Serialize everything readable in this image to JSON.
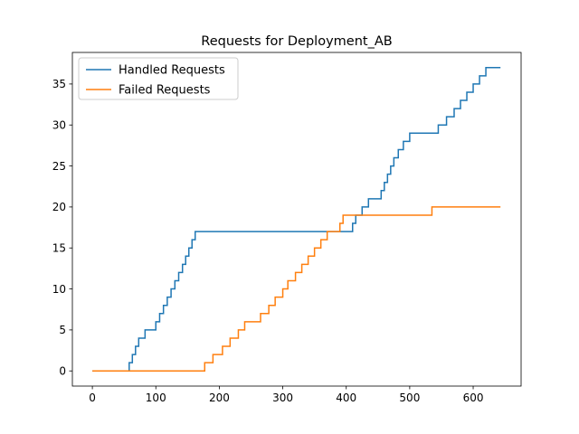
{
  "chart_data": {
    "type": "line",
    "title": "Requests for Deployment_AB",
    "xlabel": "",
    "ylabel": "",
    "xlim": [
      -31.5,
      675.5
    ],
    "ylim": [
      -1.85,
      38.85
    ],
    "xticks": [
      0,
      100,
      200,
      300,
      400,
      500,
      600
    ],
    "yticks": [
      0,
      5,
      10,
      15,
      20,
      25,
      30,
      35
    ],
    "grid": false,
    "legend_position": "top-left",
    "series": [
      {
        "name": "Handled Requests",
        "color": "#1f77b4",
        "step": true,
        "x": [
          0,
          53,
          58,
          63,
          68,
          73,
          83,
          93,
          100,
          106,
          112,
          118,
          124,
          130,
          136,
          142,
          147,
          152,
          157,
          162,
          167,
          172,
          380,
          410,
          415,
          425,
          435,
          445,
          455,
          460,
          465,
          470,
          475,
          482,
          490,
          500,
          510,
          545,
          558,
          570,
          580,
          590,
          600,
          610,
          620,
          628,
          634,
          643
        ],
        "y": [
          0,
          0,
          1,
          2,
          3,
          4,
          5,
          5,
          6,
          7,
          8,
          9,
          10,
          11,
          12,
          13,
          14,
          15,
          16,
          17,
          17,
          17,
          17,
          18,
          19,
          20,
          21,
          21,
          22,
          23,
          24,
          25,
          26,
          27,
          28,
          29,
          29,
          30,
          31,
          32,
          33,
          34,
          35,
          36,
          37,
          37,
          37,
          37
        ]
      },
      {
        "name": "Failed Requests",
        "color": "#ff7f0e",
        "step": true,
        "x": [
          0,
          172,
          177,
          190,
          205,
          217,
          230,
          240,
          250,
          265,
          278,
          288,
          300,
          308,
          320,
          330,
          340,
          350,
          360,
          370,
          380,
          390,
          395,
          400,
          440,
          480,
          520,
          535,
          643
        ],
        "y": [
          0,
          0,
          1,
          2,
          3,
          4,
          5,
          6,
          6,
          7,
          8,
          9,
          10,
          11,
          12,
          13,
          14,
          15,
          16,
          17,
          17,
          18,
          19,
          19,
          19,
          19,
          19,
          20,
          20
        ]
      }
    ]
  }
}
